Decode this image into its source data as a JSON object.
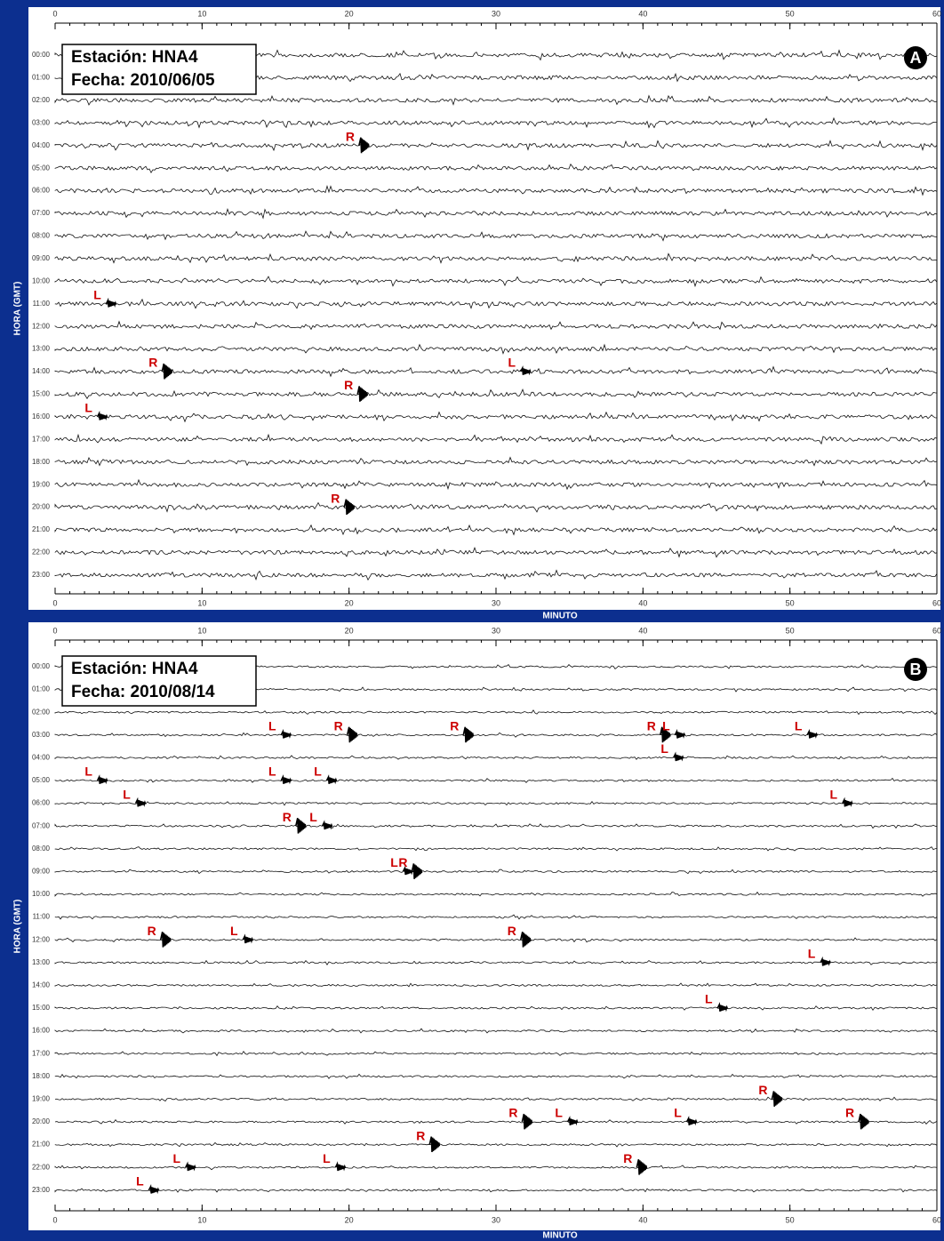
{
  "chart_data": [
    {
      "type": "seismogram",
      "panel": "A",
      "station": "Estación: HNA4",
      "date": "Fecha: 2010/06/05",
      "xlabel": "MINUTO",
      "ylabel": "HORA (GMT)",
      "xlim": [
        0,
        60
      ],
      "xticks": [
        0,
        10,
        20,
        30,
        40,
        50,
        60
      ],
      "categories": [
        "00:00",
        "01:00",
        "02:00",
        "03:00",
        "04:00",
        "05:00",
        "06:00",
        "07:00",
        "08:00",
        "09:00",
        "10:00",
        "11:00",
        "12:00",
        "13:00",
        "14:00",
        "15:00",
        "16:00",
        "17:00",
        "18:00",
        "19:00",
        "20:00",
        "21:00",
        "22:00",
        "23:00"
      ],
      "event_color": "#cc0000",
      "events": [
        {
          "label": "R",
          "row": 4,
          "x": 20.8
        },
        {
          "label": "L",
          "row": 11,
          "x": 3.6
        },
        {
          "label": "R",
          "row": 14,
          "x": 7.4
        },
        {
          "label": "R",
          "row": 15,
          "x": 20.7
        },
        {
          "label": "L",
          "row": 14,
          "x": 31.8
        },
        {
          "label": "L",
          "row": 16,
          "x": 3.0
        },
        {
          "label": "R",
          "row": 20,
          "x": 19.8
        }
      ]
    },
    {
      "type": "seismogram",
      "panel": "B",
      "station": "Estación: HNA4",
      "date": "Fecha: 2010/08/14",
      "xlabel": "MINUTO",
      "ylabel": "HORA (GMT)",
      "xlim": [
        0,
        60
      ],
      "xticks": [
        0,
        10,
        20,
        30,
        40,
        50,
        60
      ],
      "categories": [
        "00:00",
        "01:00",
        "02:00",
        "03:00",
        "04:00",
        "05:00",
        "06:00",
        "07:00",
        "08:00",
        "09:00",
        "10:00",
        "11:00",
        "12:00",
        "13:00",
        "14:00",
        "15:00",
        "16:00",
        "17:00",
        "18:00",
        "19:00",
        "20:00",
        "21:00",
        "22:00",
        "23:00"
      ],
      "event_color": "#cc0000",
      "events": [
        {
          "label": "L",
          "row": 3,
          "x": 15.5
        },
        {
          "label": "R",
          "row": 3,
          "x": 20.0
        },
        {
          "label": "R",
          "row": 3,
          "x": 27.9
        },
        {
          "label": "R",
          "row": 3,
          "x": 41.3
        },
        {
          "label": "L",
          "row": 3,
          "x": 42.3
        },
        {
          "label": "L",
          "row": 3,
          "x": 51.3
        },
        {
          "label": "L",
          "row": 4,
          "x": 42.2
        },
        {
          "label": "L",
          "row": 5,
          "x": 3.0
        },
        {
          "label": "L",
          "row": 5,
          "x": 15.5
        },
        {
          "label": "L",
          "row": 5,
          "x": 18.6
        },
        {
          "label": "L",
          "row": 6,
          "x": 5.6
        },
        {
          "label": "L",
          "row": 6,
          "x": 53.7
        },
        {
          "label": "R",
          "row": 7,
          "x": 16.5
        },
        {
          "label": "L",
          "row": 7,
          "x": 18.3
        },
        {
          "label": "L",
          "row": 9,
          "x": 23.8
        },
        {
          "label": "R",
          "row": 9,
          "x": 24.4
        },
        {
          "label": "R",
          "row": 12,
          "x": 7.3
        },
        {
          "label": "L",
          "row": 12,
          "x": 12.9
        },
        {
          "label": "R",
          "row": 12,
          "x": 31.8
        },
        {
          "label": "L",
          "row": 13,
          "x": 52.2
        },
        {
          "label": "L",
          "row": 15,
          "x": 45.2
        },
        {
          "label": "R",
          "row": 19,
          "x": 48.9
        },
        {
          "label": "R",
          "row": 20,
          "x": 31.9
        },
        {
          "label": "L",
          "row": 20,
          "x": 35.0
        },
        {
          "label": "L",
          "row": 20,
          "x": 43.1
        },
        {
          "label": "R",
          "row": 20,
          "x": 54.8
        },
        {
          "label": "R",
          "row": 21,
          "x": 25.6
        },
        {
          "label": "L",
          "row": 22,
          "x": 9.0
        },
        {
          "label": "L",
          "row": 22,
          "x": 19.2
        },
        {
          "label": "R",
          "row": 22,
          "x": 39.7
        },
        {
          "label": "L",
          "row": 23,
          "x": 6.5
        }
      ]
    }
  ]
}
